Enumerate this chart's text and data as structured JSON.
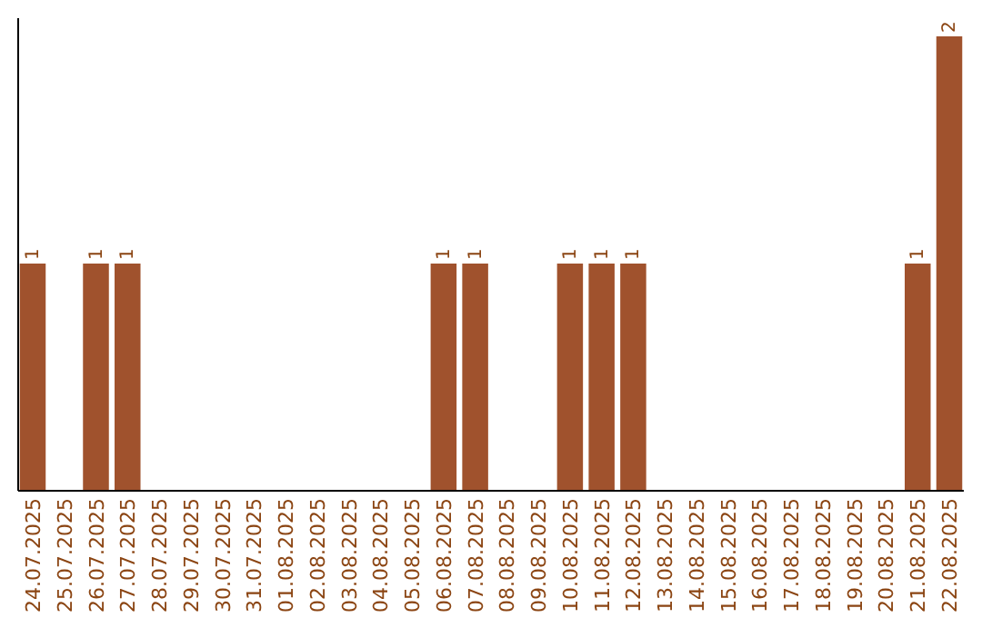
{
  "chart_data": {
    "type": "bar",
    "categories": [
      "24.07.2025",
      "25.07.2025",
      "26.07.2025",
      "27.07.2025",
      "28.07.2025",
      "29.07.2025",
      "30.07.2025",
      "31.07.2025",
      "01.08.2025",
      "02.08.2025",
      "03.08.2025",
      "04.08.2025",
      "05.08.2025",
      "06.08.2025",
      "07.08.2025",
      "08.08.2025",
      "09.08.2025",
      "10.08.2025",
      "11.08.2025",
      "12.08.2025",
      "13.08.2025",
      "14.08.2025",
      "15.08.2025",
      "16.08.2025",
      "17.08.2025",
      "18.08.2025",
      "19.08.2025",
      "20.08.2025",
      "21.08.2025",
      "22.08.2025"
    ],
    "values": [
      1,
      0,
      1,
      1,
      0,
      0,
      0,
      0,
      0,
      0,
      0,
      0,
      0,
      1,
      1,
      0,
      0,
      1,
      1,
      1,
      0,
      0,
      0,
      0,
      0,
      0,
      0,
      0,
      1,
      2
    ],
    "value_labels": [
      "1",
      null,
      "1",
      "1",
      null,
      null,
      null,
      null,
      null,
      null,
      null,
      null,
      null,
      "1",
      "1",
      null,
      null,
      "1",
      "1",
      "1",
      null,
      null,
      null,
      null,
      null,
      null,
      null,
      null,
      "1",
      "2"
    ],
    "color": "#a0522d",
    "tick_labels": "x"
  }
}
